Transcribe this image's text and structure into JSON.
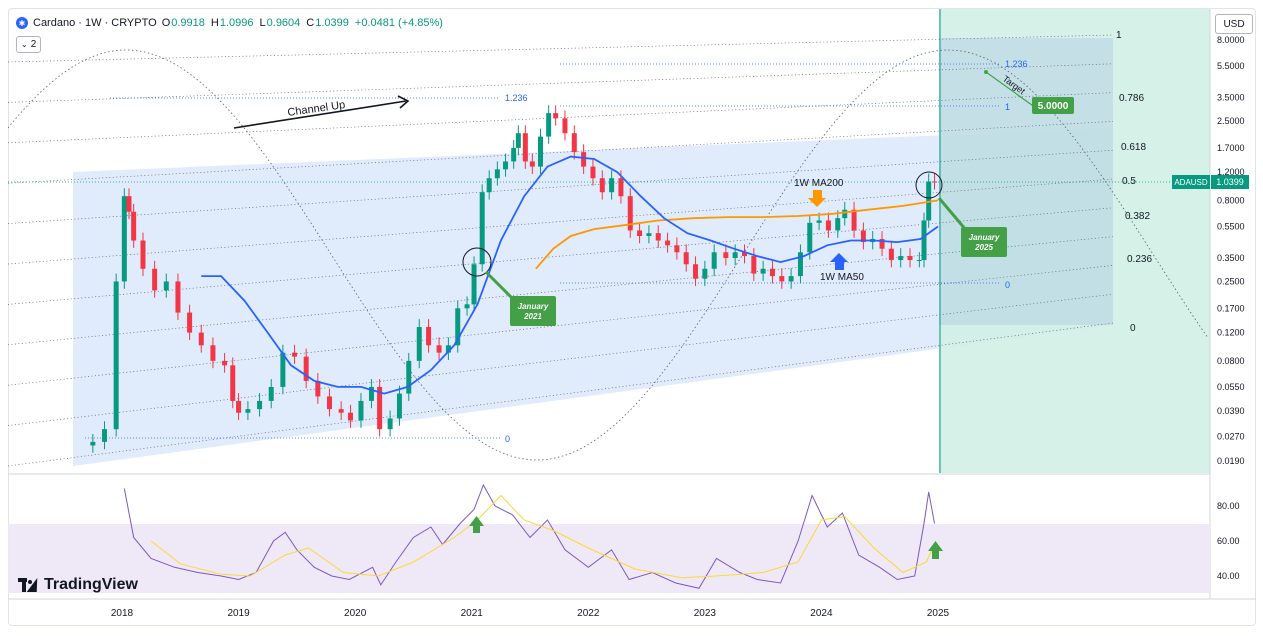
{
  "header": {
    "symbol": "Cardano · 1W · CRYPTO",
    "open_label": "O",
    "open": "0.9918",
    "high_label": "H",
    "high": "1.0996",
    "low_label": "L",
    "low": "0.9604",
    "close_label": "C",
    "close": "1.0399",
    "change": "+0.0481 (+4.85%)"
  },
  "layer_badge": "2",
  "currency_button": "USD",
  "brand": "TradingView",
  "colors": {
    "up": "#089981",
    "down": "#f23645",
    "ma50": "#2962ff",
    "ma200": "#ff9800",
    "rsi": "#7e57c2",
    "rsi_ma": "#fdd835",
    "channel_fill": "#dbe7fb",
    "target_zone": "#d0efe6",
    "label_green": "#43a047",
    "price_tag": "#089981"
  },
  "chart_data": [
    {
      "type": "candlestick",
      "title": "",
      "x_ticks": [
        "2018",
        "2019",
        "2020",
        "2021",
        "2022",
        "2023",
        "2024",
        "2025"
      ],
      "y_scale": "log",
      "y_ticks": [
        "8.0000",
        "5.5000",
        "3.5000",
        "2.5000",
        "1.7000",
        "1.2000",
        "0.8000",
        "0.5500",
        "0.3500",
        "0.2500",
        "0.1700",
        "0.1200",
        "0.0800",
        "0.0550",
        "0.0390",
        "0.0270",
        "0.0190"
      ],
      "ylim": [
        0.017,
        9.0
      ],
      "price_tag": {
        "label": "ADAUSD",
        "value": "1.0399"
      },
      "series": [
        {
          "name": "ADAUSD weekly",
          "points": [
            [
              2017.75,
              0.025
            ],
            [
              2017.85,
              0.03
            ],
            [
              2017.95,
              0.25
            ],
            [
              2018.02,
              0.85
            ],
            [
              2018.06,
              0.68
            ],
            [
              2018.1,
              0.45
            ],
            [
              2018.18,
              0.3
            ],
            [
              2018.28,
              0.22
            ],
            [
              2018.38,
              0.25
            ],
            [
              2018.48,
              0.16
            ],
            [
              2018.58,
              0.12
            ],
            [
              2018.68,
              0.1
            ],
            [
              2018.78,
              0.08
            ],
            [
              2018.88,
              0.075
            ],
            [
              2018.95,
              0.045
            ],
            [
              2019.0,
              0.038
            ],
            [
              2019.08,
              0.04
            ],
            [
              2019.18,
              0.045
            ],
            [
              2019.28,
              0.055
            ],
            [
              2019.38,
              0.09
            ],
            [
              2019.48,
              0.085
            ],
            [
              2019.58,
              0.06
            ],
            [
              2019.68,
              0.048
            ],
            [
              2019.78,
              0.04
            ],
            [
              2019.88,
              0.038
            ],
            [
              2019.96,
              0.034
            ],
            [
              2020.05,
              0.045
            ],
            [
              2020.14,
              0.055
            ],
            [
              2020.21,
              0.03
            ],
            [
              2020.3,
              0.035
            ],
            [
              2020.38,
              0.05
            ],
            [
              2020.46,
              0.08
            ],
            [
              2020.55,
              0.13
            ],
            [
              2020.63,
              0.1
            ],
            [
              2020.72,
              0.09
            ],
            [
              2020.8,
              0.1
            ],
            [
              2020.88,
              0.17
            ],
            [
              2020.96,
              0.18
            ],
            [
              2021.02,
              0.32
            ],
            [
              2021.09,
              0.9
            ],
            [
              2021.15,
              1.1
            ],
            [
              2021.22,
              1.25
            ],
            [
              2021.29,
              1.4
            ],
            [
              2021.36,
              1.7
            ],
            [
              2021.4,
              2.1
            ],
            [
              2021.46,
              1.4
            ],
            [
              2021.52,
              1.3
            ],
            [
              2021.59,
              2.0
            ],
            [
              2021.66,
              2.8
            ],
            [
              2021.72,
              2.6
            ],
            [
              2021.8,
              2.1
            ],
            [
              2021.88,
              1.6
            ],
            [
              2021.96,
              1.3
            ],
            [
              2022.04,
              1.1
            ],
            [
              2022.12,
              0.9
            ],
            [
              2022.2,
              1.1
            ],
            [
              2022.28,
              0.85
            ],
            [
              2022.36,
              0.52
            ],
            [
              2022.44,
              0.48
            ],
            [
              2022.52,
              0.5
            ],
            [
              2022.6,
              0.45
            ],
            [
              2022.68,
              0.42
            ],
            [
              2022.76,
              0.38
            ],
            [
              2022.84,
              0.32
            ],
            [
              2022.92,
              0.26
            ],
            [
              2023.0,
              0.3
            ],
            [
              2023.08,
              0.38
            ],
            [
              2023.18,
              0.35
            ],
            [
              2023.26,
              0.38
            ],
            [
              2023.34,
              0.36
            ],
            [
              2023.42,
              0.28
            ],
            [
              2023.5,
              0.3
            ],
            [
              2023.58,
              0.27
            ],
            [
              2023.66,
              0.25
            ],
            [
              2023.74,
              0.27
            ],
            [
              2023.82,
              0.38
            ],
            [
              2023.9,
              0.58
            ],
            [
              2023.98,
              0.6
            ],
            [
              2024.06,
              0.52
            ],
            [
              2024.14,
              0.62
            ],
            [
              2024.2,
              0.7
            ],
            [
              2024.28,
              0.52
            ],
            [
              2024.36,
              0.44
            ],
            [
              2024.44,
              0.46
            ],
            [
              2024.52,
              0.4
            ],
            [
              2024.6,
              0.34
            ],
            [
              2024.68,
              0.36
            ],
            [
              2024.76,
              0.34
            ],
            [
              2024.84,
              0.34
            ],
            [
              2024.88,
              0.6
            ],
            [
              2024.92,
              1.05
            ],
            [
              2024.97,
              1.0399
            ]
          ]
        },
        {
          "name": "1W MA50",
          "points": [
            [
              2018.68,
              0.27
            ],
            [
              2018.85,
              0.27
            ],
            [
              2019.05,
              0.19
            ],
            [
              2019.25,
              0.12
            ],
            [
              2019.45,
              0.075
            ],
            [
              2019.65,
              0.06
            ],
            [
              2019.85,
              0.055
            ],
            [
              2020.05,
              0.055
            ],
            [
              2020.25,
              0.05
            ],
            [
              2020.45,
              0.055
            ],
            [
              2020.65,
              0.07
            ],
            [
              2020.85,
              0.1
            ],
            [
              2021.05,
              0.18
            ],
            [
              2021.25,
              0.45
            ],
            [
              2021.45,
              0.85
            ],
            [
              2021.65,
              1.3
            ],
            [
              2021.85,
              1.5
            ],
            [
              2022.05,
              1.45
            ],
            [
              2022.25,
              1.2
            ],
            [
              2022.45,
              0.85
            ],
            [
              2022.65,
              0.62
            ],
            [
              2022.85,
              0.5
            ],
            [
              2023.05,
              0.45
            ],
            [
              2023.25,
              0.4
            ],
            [
              2023.45,
              0.36
            ],
            [
              2023.65,
              0.33
            ],
            [
              2023.85,
              0.36
            ],
            [
              2024.05,
              0.42
            ],
            [
              2024.25,
              0.45
            ],
            [
              2024.45,
              0.45
            ],
            [
              2024.65,
              0.44
            ],
            [
              2024.85,
              0.46
            ],
            [
              2025.0,
              0.55
            ]
          ]
        },
        {
          "name": "1W MA200",
          "points": [
            [
              2021.55,
              0.3
            ],
            [
              2021.7,
              0.4
            ],
            [
              2021.85,
              0.48
            ],
            [
              2022.05,
              0.53
            ],
            [
              2022.3,
              0.56
            ],
            [
              2022.6,
              0.6
            ],
            [
              2022.9,
              0.62
            ],
            [
              2023.2,
              0.63
            ],
            [
              2023.5,
              0.63
            ],
            [
              2023.8,
              0.64
            ],
            [
              2024.1,
              0.66
            ],
            [
              2024.4,
              0.7
            ],
            [
              2024.7,
              0.74
            ],
            [
              2025.0,
              0.8
            ]
          ]
        }
      ],
      "annotations": {
        "channel_label": "Channel Up",
        "ma200_label": "1W MA200",
        "ma50_label": "1W MA50",
        "callout_2021": "January 2021",
        "callout_2025": "January 2025",
        "target_label": "Target",
        "target_value": "5.0000",
        "channel_levels": [
          "1",
          "0.786",
          "0.618",
          "0.5",
          "0.382",
          "0.236",
          "0"
        ],
        "fib_2021": [
          "1.236",
          "0"
        ],
        "fib_2025": [
          "1.236",
          "1",
          "0"
        ]
      }
    },
    {
      "type": "line",
      "title": "",
      "y_ticks": [
        "80.00",
        "60.00",
        "40.00"
      ],
      "ylim": [
        28,
        95
      ],
      "band": [
        30,
        70
      ],
      "series": [
        {
          "name": "RSI",
          "points": [
            [
              2018.02,
              90
            ],
            [
              2018.1,
              62
            ],
            [
              2018.25,
              50
            ],
            [
              2018.45,
              45
            ],
            [
              2018.65,
              42
            ],
            [
              2018.85,
              40
            ],
            [
              2019.0,
              38
            ],
            [
              2019.15,
              42
            ],
            [
              2019.3,
              60
            ],
            [
              2019.4,
              65
            ],
            [
              2019.5,
              55
            ],
            [
              2019.65,
              45
            ],
            [
              2019.8,
              40
            ],
            [
              2019.95,
              38
            ],
            [
              2020.15,
              45
            ],
            [
              2020.22,
              35
            ],
            [
              2020.35,
              48
            ],
            [
              2020.5,
              62
            ],
            [
              2020.65,
              68
            ],
            [
              2020.75,
              58
            ],
            [
              2020.9,
              70
            ],
            [
              2021.02,
              78
            ],
            [
              2021.1,
              92
            ],
            [
              2021.2,
              80
            ],
            [
              2021.35,
              75
            ],
            [
              2021.5,
              62
            ],
            [
              2021.65,
              72
            ],
            [
              2021.8,
              55
            ],
            [
              2022.0,
              45
            ],
            [
              2022.2,
              55
            ],
            [
              2022.35,
              38
            ],
            [
              2022.55,
              42
            ],
            [
              2022.75,
              36
            ],
            [
              2022.95,
              33
            ],
            [
              2023.1,
              50
            ],
            [
              2023.3,
              42
            ],
            [
              2023.45,
              38
            ],
            [
              2023.65,
              36
            ],
            [
              2023.8,
              60
            ],
            [
              2023.92,
              86
            ],
            [
              2024.05,
              68
            ],
            [
              2024.18,
              76
            ],
            [
              2024.32,
              52
            ],
            [
              2024.5,
              45
            ],
            [
              2024.65,
              38
            ],
            [
              2024.8,
              40
            ],
            [
              2024.88,
              70
            ],
            [
              2024.92,
              88
            ],
            [
              2024.97,
              70
            ]
          ]
        },
        {
          "name": "RSI MA",
          "points": [
            [
              2018.25,
              60
            ],
            [
              2018.5,
              47
            ],
            [
              2018.85,
              41
            ],
            [
              2019.1,
              40
            ],
            [
              2019.4,
              52
            ],
            [
              2019.6,
              56
            ],
            [
              2019.9,
              42
            ],
            [
              2020.2,
              40
            ],
            [
              2020.5,
              48
            ],
            [
              2020.85,
              62
            ],
            [
              2021.05,
              72
            ],
            [
              2021.25,
              86
            ],
            [
              2021.45,
              72
            ],
            [
              2021.7,
              66
            ],
            [
              2022.0,
              56
            ],
            [
              2022.4,
              44
            ],
            [
              2022.8,
              39
            ],
            [
              2023.1,
              40
            ],
            [
              2023.5,
              42
            ],
            [
              2023.8,
              48
            ],
            [
              2024.0,
              72
            ],
            [
              2024.2,
              74
            ],
            [
              2024.45,
              56
            ],
            [
              2024.7,
              42
            ],
            [
              2024.9,
              48
            ],
            [
              2024.97,
              58
            ]
          ]
        }
      ]
    }
  ]
}
